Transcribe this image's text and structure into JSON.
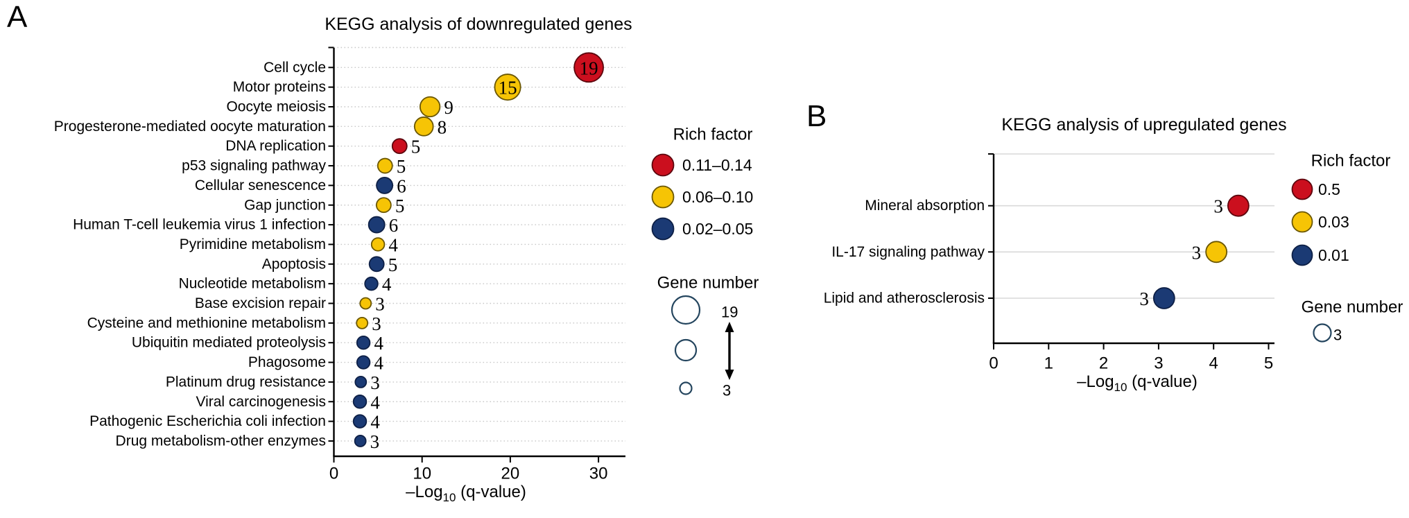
{
  "figure": {
    "colors": {
      "red": "#cb0f1e",
      "yellow": "#f6c405",
      "blue": "#1b3a74",
      "red_stroke": "#5c060d",
      "yellow_stroke": "#6a5600",
      "blue_stroke": "#0d1f45",
      "legend_circle_stroke": "#24455e",
      "grid_dotted": "#c8c8c8",
      "grid_solid": "#d9d9d9",
      "axis": "#000000"
    },
    "panels": [
      {
        "id": "A",
        "letter": "A",
        "title": "KEGG analysis of downregulated genes",
        "xlabel": {
          "pre": "–Log",
          "sub": "10",
          "post": " (q-value)"
        },
        "chart_data": {
          "type": "scatter",
          "subtype": "bubble",
          "orientation": "horizontal",
          "xlim": [
            0,
            30
          ],
          "xticks": [
            0,
            10,
            20,
            30
          ],
          "grid": "dotted",
          "x_encoding": "–Log10 (q-value)",
          "size_encoding": "Gene number",
          "color_encoding": "Rich factor",
          "points": [
            {
              "category": "Cell cycle",
              "x": 28.9,
              "gene_number": 19,
              "color": "red",
              "rich_factor_bin": "0.11–0.14",
              "label_inside": true
            },
            {
              "category": "Motor proteins",
              "x": 19.7,
              "gene_number": 15,
              "color": "yellow",
              "rich_factor_bin": "0.06–0.10",
              "label_inside": true
            },
            {
              "category": "Oocyte meiosis",
              "x": 10.9,
              "gene_number": 9,
              "color": "yellow",
              "rich_factor_bin": "0.06–0.10",
              "label_inside": false
            },
            {
              "category": "Progesterone-mediated oocyte maturation",
              "x": 10.2,
              "gene_number": 8,
              "color": "yellow",
              "rich_factor_bin": "0.06–0.10",
              "label_inside": false
            },
            {
              "category": "DNA replication",
              "x": 7.45,
              "gene_number": 5,
              "color": "red",
              "rich_factor_bin": "0.11–0.14",
              "label_inside": false
            },
            {
              "category": "p53 signaling pathway",
              "x": 5.8,
              "gene_number": 5,
              "color": "yellow",
              "rich_factor_bin": "0.06–0.10",
              "label_inside": false
            },
            {
              "category": "Cellular senescence",
              "x": 5.75,
              "gene_number": 6,
              "color": "blue",
              "rich_factor_bin": "0.02–0.05",
              "label_inside": false
            },
            {
              "category": "Gap junction",
              "x": 5.65,
              "gene_number": 5,
              "color": "yellow",
              "rich_factor_bin": "0.06–0.10",
              "label_inside": false
            },
            {
              "category": "Human T-cell leukemia virus 1 infection",
              "x": 4.85,
              "gene_number": 6,
              "color": "blue",
              "rich_factor_bin": "0.02–0.05",
              "label_inside": false
            },
            {
              "category": "Pyrimidine metabolism",
              "x": 5.0,
              "gene_number": 4,
              "color": "yellow",
              "rich_factor_bin": "0.06–0.10",
              "label_inside": false
            },
            {
              "category": "Apoptosis",
              "x": 4.85,
              "gene_number": 5,
              "color": "blue",
              "rich_factor_bin": "0.02–0.05",
              "label_inside": false
            },
            {
              "category": "Nucleotide metabolism",
              "x": 4.25,
              "gene_number": 4,
              "color": "blue",
              "rich_factor_bin": "0.02–0.05",
              "label_inside": false
            },
            {
              "category": "Base excision repair",
              "x": 3.6,
              "gene_number": 3,
              "color": "yellow",
              "rich_factor_bin": "0.06–0.10",
              "label_inside": false
            },
            {
              "category": "Cysteine and methionine metabolism",
              "x": 3.2,
              "gene_number": 3,
              "color": "yellow",
              "rich_factor_bin": "0.06–0.10",
              "label_inside": false
            },
            {
              "category": "Ubiquitin mediated proteolysis",
              "x": 3.35,
              "gene_number": 4,
              "color": "blue",
              "rich_factor_bin": "0.02–0.05",
              "label_inside": false
            },
            {
              "category": "Phagosome",
              "x": 3.35,
              "gene_number": 4,
              "color": "blue",
              "rich_factor_bin": "0.02–0.05",
              "label_inside": false
            },
            {
              "category": "Platinum drug resistance",
              "x": 3.05,
              "gene_number": 3,
              "color": "blue",
              "rich_factor_bin": "0.02–0.05",
              "label_inside": false
            },
            {
              "category": "Viral carcinogenesis",
              "x": 2.95,
              "gene_number": 4,
              "color": "blue",
              "rich_factor_bin": "0.02–0.05",
              "label_inside": false
            },
            {
              "category": "Pathogenic Escherichia coli infection",
              "x": 2.95,
              "gene_number": 4,
              "color": "blue",
              "rich_factor_bin": "0.02–0.05",
              "label_inside": false
            },
            {
              "category": "Drug metabolism-other enzymes",
              "x": 3.0,
              "gene_number": 3,
              "color": "blue",
              "rich_factor_bin": "0.02–0.05",
              "label_inside": false
            }
          ]
        },
        "legend": {
          "rich_factor": {
            "title": "Rich factor",
            "items": [
              {
                "label": "0.11–0.14",
                "color": "red"
              },
              {
                "label": "0.06–0.10",
                "color": "yellow"
              },
              {
                "label": "0.02–0.05",
                "color": "blue"
              }
            ]
          },
          "gene_number": {
            "title": "Gene number",
            "max_label": "19",
            "min_label": "3"
          }
        }
      },
      {
        "id": "B",
        "letter": "B",
        "title": "KEGG analysis of upregulated genes",
        "xlabel": {
          "pre": "–Log",
          "sub": "10",
          "post": " (q-value)"
        },
        "chart_data": {
          "type": "scatter",
          "subtype": "bubble",
          "orientation": "horizontal",
          "xlim": [
            0,
            5
          ],
          "xticks": [
            0,
            1,
            2,
            3,
            4,
            5
          ],
          "grid": "solid",
          "x_encoding": "–Log10 (q-value)",
          "size_encoding": "Gene number",
          "color_encoding": "Rich factor",
          "points": [
            {
              "category": "Mineral absorption",
              "x": 4.45,
              "gene_number": 3,
              "color": "red",
              "rich_factor_bin": "0.5",
              "label_inside": false
            },
            {
              "category": "IL-17 signaling pathway",
              "x": 4.05,
              "gene_number": 3,
              "color": "yellow",
              "rich_factor_bin": "0.03",
              "label_inside": false
            },
            {
              "category": "Lipid and atherosclerosis",
              "x": 3.1,
              "gene_number": 3,
              "color": "blue",
              "rich_factor_bin": "0.01",
              "label_inside": false
            }
          ]
        },
        "legend": {
          "rich_factor": {
            "title": "Rich factor",
            "items": [
              {
                "label": "0.5",
                "color": "red"
              },
              {
                "label": "0.03",
                "color": "yellow"
              },
              {
                "label": "0.01",
                "color": "blue"
              }
            ]
          },
          "gene_number": {
            "title": "Gene number",
            "min_label": "3"
          }
        }
      }
    ]
  }
}
